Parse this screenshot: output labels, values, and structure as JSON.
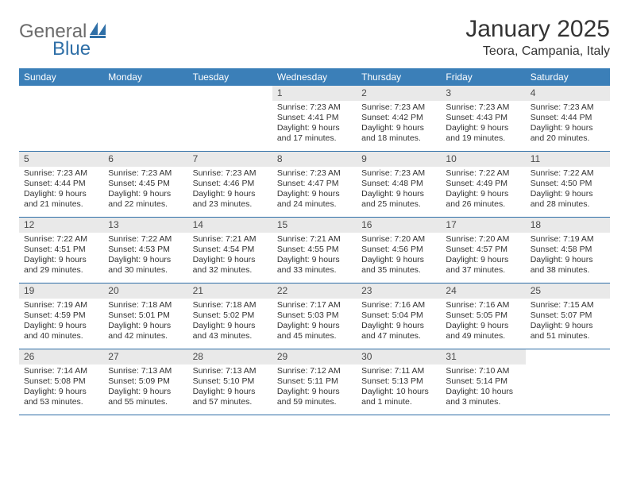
{
  "logo": {
    "text1": "General",
    "text2": "Blue"
  },
  "title": "January 2025",
  "location": "Teora, Campania, Italy",
  "colors": {
    "header_bg": "#3b7fb8",
    "header_text": "#ffffff",
    "daynum_bg": "#e9e9e9",
    "daynum_text": "#4a4a4a",
    "body_text": "#333333",
    "rule": "#2f6fa7",
    "logo_gray": "#6b6b6b",
    "logo_blue": "#2f6fa7"
  },
  "dow": [
    "Sunday",
    "Monday",
    "Tuesday",
    "Wednesday",
    "Thursday",
    "Friday",
    "Saturday"
  ],
  "weeks": [
    [
      {
        "n": "",
        "sr": "",
        "ss": "",
        "dl": ""
      },
      {
        "n": "",
        "sr": "",
        "ss": "",
        "dl": ""
      },
      {
        "n": "",
        "sr": "",
        "ss": "",
        "dl": ""
      },
      {
        "n": "1",
        "sr": "Sunrise: 7:23 AM",
        "ss": "Sunset: 4:41 PM",
        "dl": "Daylight: 9 hours and 17 minutes."
      },
      {
        "n": "2",
        "sr": "Sunrise: 7:23 AM",
        "ss": "Sunset: 4:42 PM",
        "dl": "Daylight: 9 hours and 18 minutes."
      },
      {
        "n": "3",
        "sr": "Sunrise: 7:23 AM",
        "ss": "Sunset: 4:43 PM",
        "dl": "Daylight: 9 hours and 19 minutes."
      },
      {
        "n": "4",
        "sr": "Sunrise: 7:23 AM",
        "ss": "Sunset: 4:44 PM",
        "dl": "Daylight: 9 hours and 20 minutes."
      }
    ],
    [
      {
        "n": "5",
        "sr": "Sunrise: 7:23 AM",
        "ss": "Sunset: 4:44 PM",
        "dl": "Daylight: 9 hours and 21 minutes."
      },
      {
        "n": "6",
        "sr": "Sunrise: 7:23 AM",
        "ss": "Sunset: 4:45 PM",
        "dl": "Daylight: 9 hours and 22 minutes."
      },
      {
        "n": "7",
        "sr": "Sunrise: 7:23 AM",
        "ss": "Sunset: 4:46 PM",
        "dl": "Daylight: 9 hours and 23 minutes."
      },
      {
        "n": "8",
        "sr": "Sunrise: 7:23 AM",
        "ss": "Sunset: 4:47 PM",
        "dl": "Daylight: 9 hours and 24 minutes."
      },
      {
        "n": "9",
        "sr": "Sunrise: 7:23 AM",
        "ss": "Sunset: 4:48 PM",
        "dl": "Daylight: 9 hours and 25 minutes."
      },
      {
        "n": "10",
        "sr": "Sunrise: 7:22 AM",
        "ss": "Sunset: 4:49 PM",
        "dl": "Daylight: 9 hours and 26 minutes."
      },
      {
        "n": "11",
        "sr": "Sunrise: 7:22 AM",
        "ss": "Sunset: 4:50 PM",
        "dl": "Daylight: 9 hours and 28 minutes."
      }
    ],
    [
      {
        "n": "12",
        "sr": "Sunrise: 7:22 AM",
        "ss": "Sunset: 4:51 PM",
        "dl": "Daylight: 9 hours and 29 minutes."
      },
      {
        "n": "13",
        "sr": "Sunrise: 7:22 AM",
        "ss": "Sunset: 4:53 PM",
        "dl": "Daylight: 9 hours and 30 minutes."
      },
      {
        "n": "14",
        "sr": "Sunrise: 7:21 AM",
        "ss": "Sunset: 4:54 PM",
        "dl": "Daylight: 9 hours and 32 minutes."
      },
      {
        "n": "15",
        "sr": "Sunrise: 7:21 AM",
        "ss": "Sunset: 4:55 PM",
        "dl": "Daylight: 9 hours and 33 minutes."
      },
      {
        "n": "16",
        "sr": "Sunrise: 7:20 AM",
        "ss": "Sunset: 4:56 PM",
        "dl": "Daylight: 9 hours and 35 minutes."
      },
      {
        "n": "17",
        "sr": "Sunrise: 7:20 AM",
        "ss": "Sunset: 4:57 PM",
        "dl": "Daylight: 9 hours and 37 minutes."
      },
      {
        "n": "18",
        "sr": "Sunrise: 7:19 AM",
        "ss": "Sunset: 4:58 PM",
        "dl": "Daylight: 9 hours and 38 minutes."
      }
    ],
    [
      {
        "n": "19",
        "sr": "Sunrise: 7:19 AM",
        "ss": "Sunset: 4:59 PM",
        "dl": "Daylight: 9 hours and 40 minutes."
      },
      {
        "n": "20",
        "sr": "Sunrise: 7:18 AM",
        "ss": "Sunset: 5:01 PM",
        "dl": "Daylight: 9 hours and 42 minutes."
      },
      {
        "n": "21",
        "sr": "Sunrise: 7:18 AM",
        "ss": "Sunset: 5:02 PM",
        "dl": "Daylight: 9 hours and 43 minutes."
      },
      {
        "n": "22",
        "sr": "Sunrise: 7:17 AM",
        "ss": "Sunset: 5:03 PM",
        "dl": "Daylight: 9 hours and 45 minutes."
      },
      {
        "n": "23",
        "sr": "Sunrise: 7:16 AM",
        "ss": "Sunset: 5:04 PM",
        "dl": "Daylight: 9 hours and 47 minutes."
      },
      {
        "n": "24",
        "sr": "Sunrise: 7:16 AM",
        "ss": "Sunset: 5:05 PM",
        "dl": "Daylight: 9 hours and 49 minutes."
      },
      {
        "n": "25",
        "sr": "Sunrise: 7:15 AM",
        "ss": "Sunset: 5:07 PM",
        "dl": "Daylight: 9 hours and 51 minutes."
      }
    ],
    [
      {
        "n": "26",
        "sr": "Sunrise: 7:14 AM",
        "ss": "Sunset: 5:08 PM",
        "dl": "Daylight: 9 hours and 53 minutes."
      },
      {
        "n": "27",
        "sr": "Sunrise: 7:13 AM",
        "ss": "Sunset: 5:09 PM",
        "dl": "Daylight: 9 hours and 55 minutes."
      },
      {
        "n": "28",
        "sr": "Sunrise: 7:13 AM",
        "ss": "Sunset: 5:10 PM",
        "dl": "Daylight: 9 hours and 57 minutes."
      },
      {
        "n": "29",
        "sr": "Sunrise: 7:12 AM",
        "ss": "Sunset: 5:11 PM",
        "dl": "Daylight: 9 hours and 59 minutes."
      },
      {
        "n": "30",
        "sr": "Sunrise: 7:11 AM",
        "ss": "Sunset: 5:13 PM",
        "dl": "Daylight: 10 hours and 1 minute."
      },
      {
        "n": "31",
        "sr": "Sunrise: 7:10 AM",
        "ss": "Sunset: 5:14 PM",
        "dl": "Daylight: 10 hours and 3 minutes."
      },
      {
        "n": "",
        "sr": "",
        "ss": "",
        "dl": ""
      }
    ]
  ]
}
